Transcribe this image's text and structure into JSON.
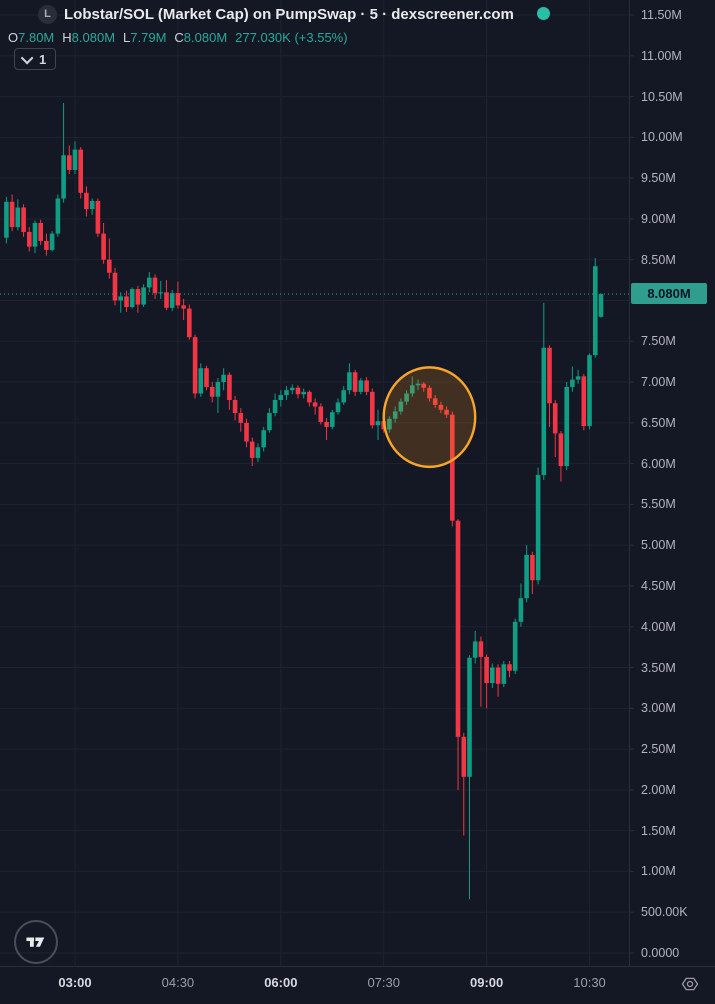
{
  "header": {
    "symbol_badge": "L",
    "title": "Lobstar/SOL (Market Cap) on PumpSwap · 5 · dexscreener.com",
    "ohlc": {
      "o_label": "O",
      "o_value": "7.80M",
      "h_label": "H",
      "h_value": "8.080M",
      "l_label": "L",
      "l_value": "7.79M",
      "c_label": "C",
      "c_value": "8.080M",
      "change": "277.030K (+3.55%)"
    },
    "interval_button_label": "1",
    "status_dot_color": "#27bfa5"
  },
  "chart_data": {
    "type": "candlestick",
    "interval": "5 minutes",
    "title": "Lobstar/SOL Market Cap on PumpSwap",
    "ylim": [
      0,
      11.5
    ],
    "grid": true,
    "last_price": "8.080M",
    "last_price_value": 8.08,
    "colors": {
      "up": "#0f9d84",
      "down": "#f23645",
      "accent": "#2fa99a",
      "grid": "#1e2330",
      "chip_bg": "#2f9e8e",
      "chip_text": "#0c1424"
    },
    "price_ticks": [
      {
        "value": 11.5,
        "label": "11.50M"
      },
      {
        "value": 11.0,
        "label": "11.00M"
      },
      {
        "value": 10.5,
        "label": "10.50M"
      },
      {
        "value": 10.0,
        "label": "10.00M"
      },
      {
        "value": 9.5,
        "label": "9.50M"
      },
      {
        "value": 9.0,
        "label": "9.00M"
      },
      {
        "value": 8.5,
        "label": "8.50M"
      },
      {
        "value": 7.5,
        "label": "7.50M"
      },
      {
        "value": 7.0,
        "label": "7.00M"
      },
      {
        "value": 6.5,
        "label": "6.50M"
      },
      {
        "value": 6.0,
        "label": "6.00M"
      },
      {
        "value": 5.5,
        "label": "5.50M"
      },
      {
        "value": 5.0,
        "label": "5.00M"
      },
      {
        "value": 4.5,
        "label": "4.50M"
      },
      {
        "value": 4.0,
        "label": "4.00M"
      },
      {
        "value": 3.5,
        "label": "3.50M"
      },
      {
        "value": 3.0,
        "label": "3.00M"
      },
      {
        "value": 2.5,
        "label": "2.50M"
      },
      {
        "value": 2.0,
        "label": "2.00M"
      },
      {
        "value": 1.5,
        "label": "1.50M"
      },
      {
        "value": 1.0,
        "label": "1.00M"
      },
      {
        "value": 0.5,
        "label": "500.00K"
      },
      {
        "value": 0.0,
        "label": "0.0000"
      }
    ],
    "time_axis": [
      {
        "label": "03:00",
        "bold": true
      },
      {
        "label": "04:30",
        "bold": false
      },
      {
        "label": "06:00",
        "bold": true
      },
      {
        "label": "07:30",
        "bold": false
      },
      {
        "label": "09:00",
        "bold": true
      },
      {
        "label": "10:30",
        "bold": false
      }
    ],
    "annotation_circle": {
      "center_time": "08:10",
      "center_price": 6.57,
      "radius_minutes": 40,
      "radius_price": 0.61,
      "stroke": "#f7a62b",
      "fill": "rgba(247,147,26,0.2)"
    },
    "columns": [
      "time",
      "open",
      "high",
      "low",
      "close"
    ],
    "candles": [
      [
        "02:00",
        8.77,
        9.27,
        8.7,
        9.21
      ],
      [
        "02:05",
        9.21,
        9.3,
        8.85,
        8.9
      ],
      [
        "02:10",
        8.9,
        9.24,
        8.86,
        9.14
      ],
      [
        "02:15",
        9.14,
        9.18,
        8.78,
        8.84
      ],
      [
        "02:20",
        8.84,
        8.9,
        8.6,
        8.66
      ],
      [
        "02:25",
        8.66,
        8.98,
        8.58,
        8.95
      ],
      [
        "02:30",
        8.95,
        8.99,
        8.68,
        8.73
      ],
      [
        "02:35",
        8.73,
        8.82,
        8.55,
        8.62
      ],
      [
        "02:40",
        8.62,
        8.85,
        8.6,
        8.82
      ],
      [
        "02:45",
        8.82,
        9.3,
        8.78,
        9.25
      ],
      [
        "02:50",
        9.25,
        10.42,
        9.2,
        9.78
      ],
      [
        "02:55",
        9.78,
        9.9,
        9.55,
        9.6
      ],
      [
        "03:00",
        9.6,
        9.95,
        9.55,
        9.85
      ],
      [
        "03:05",
        9.85,
        9.88,
        9.25,
        9.32
      ],
      [
        "03:10",
        9.32,
        9.4,
        9.03,
        9.12
      ],
      [
        "03:15",
        9.12,
        9.25,
        9.05,
        9.22
      ],
      [
        "03:20",
        9.22,
        9.25,
        8.78,
        8.82
      ],
      [
        "03:25",
        8.82,
        8.95,
        8.45,
        8.5
      ],
      [
        "03:30",
        8.5,
        8.76,
        8.27,
        8.34
      ],
      [
        "03:35",
        8.34,
        8.4,
        7.94,
        8.0
      ],
      [
        "03:40",
        8.0,
        8.1,
        7.85,
        8.05
      ],
      [
        "03:45",
        8.05,
        8.12,
        7.86,
        7.92
      ],
      [
        "03:50",
        7.92,
        8.16,
        7.9,
        8.14
      ],
      [
        "03:55",
        8.14,
        8.18,
        7.85,
        7.95
      ],
      [
        "04:00",
        7.95,
        8.2,
        7.92,
        8.16
      ],
      [
        "04:05",
        8.16,
        8.35,
        8.1,
        8.28
      ],
      [
        "04:10",
        8.28,
        8.32,
        8.02,
        8.09
      ],
      [
        "04:15",
        8.09,
        8.24,
        8.02,
        8.1
      ],
      [
        "04:20",
        8.1,
        8.25,
        7.88,
        7.91
      ],
      [
        "04:25",
        7.91,
        8.13,
        7.87,
        8.09
      ],
      [
        "04:30",
        8.09,
        8.23,
        7.9,
        7.94
      ],
      [
        "04:35",
        7.94,
        8.02,
        7.76,
        7.9
      ],
      [
        "04:40",
        7.9,
        7.95,
        7.52,
        7.55
      ],
      [
        "04:45",
        7.55,
        7.58,
        6.8,
        6.86
      ],
      [
        "04:50",
        6.86,
        7.23,
        6.82,
        7.17
      ],
      [
        "04:55",
        7.17,
        7.2,
        6.9,
        6.94
      ],
      [
        "05:00",
        6.94,
        7.0,
        6.75,
        6.82
      ],
      [
        "05:05",
        6.82,
        7.05,
        6.62,
        7.0
      ],
      [
        "05:10",
        7.0,
        7.17,
        6.9,
        7.09
      ],
      [
        "05:15",
        7.09,
        7.12,
        6.66,
        6.78
      ],
      [
        "05:20",
        6.78,
        6.83,
        6.53,
        6.62
      ],
      [
        "05:25",
        6.62,
        6.68,
        6.39,
        6.5
      ],
      [
        "05:30",
        6.5,
        6.55,
        6.2,
        6.27
      ],
      [
        "05:35",
        6.27,
        6.32,
        5.97,
        6.07
      ],
      [
        "05:40",
        6.07,
        6.25,
        6.02,
        6.2
      ],
      [
        "05:45",
        6.2,
        6.45,
        6.15,
        6.41
      ],
      [
        "05:50",
        6.41,
        6.68,
        6.38,
        6.62
      ],
      [
        "05:55",
        6.62,
        6.86,
        6.58,
        6.78
      ],
      [
        "06:00",
        6.78,
        6.9,
        6.7,
        6.84
      ],
      [
        "06:05",
        6.84,
        6.95,
        6.78,
        6.9
      ],
      [
        "06:10",
        6.9,
        6.97,
        6.85,
        6.93
      ],
      [
        "06:15",
        6.93,
        6.96,
        6.8,
        6.85
      ],
      [
        "06:20",
        6.85,
        6.92,
        6.8,
        6.88
      ],
      [
        "06:25",
        6.88,
        6.9,
        6.7,
        6.75
      ],
      [
        "06:30",
        6.75,
        6.8,
        6.6,
        6.7
      ],
      [
        "06:35",
        6.7,
        6.74,
        6.48,
        6.51
      ],
      [
        "06:40",
        6.51,
        6.56,
        6.29,
        6.45
      ],
      [
        "06:45",
        6.45,
        6.66,
        6.42,
        6.63
      ],
      [
        "06:50",
        6.63,
        6.8,
        6.6,
        6.75
      ],
      [
        "06:55",
        6.75,
        6.95,
        6.72,
        6.9
      ],
      [
        "07:00",
        6.9,
        7.23,
        6.85,
        7.12
      ],
      [
        "07:05",
        7.12,
        7.15,
        6.83,
        6.88
      ],
      [
        "07:10",
        6.88,
        7.05,
        6.85,
        7.02
      ],
      [
        "07:15",
        7.02,
        7.06,
        6.84,
        6.88
      ],
      [
        "07:20",
        6.88,
        6.92,
        6.43,
        6.47
      ],
      [
        "07:25",
        6.47,
        6.66,
        6.29,
        6.52
      ],
      [
        "07:30",
        6.52,
        6.56,
        6.38,
        6.42
      ],
      [
        "07:35",
        6.42,
        6.58,
        6.38,
        6.55
      ],
      [
        "07:40",
        6.55,
        6.7,
        6.5,
        6.64
      ],
      [
        "07:45",
        6.64,
        6.8,
        6.6,
        6.76
      ],
      [
        "07:50",
        6.76,
        6.9,
        6.72,
        6.86
      ],
      [
        "07:55",
        6.86,
        7.07,
        6.82,
        6.96
      ],
      [
        "08:00",
        6.96,
        7.03,
        6.9,
        6.98
      ],
      [
        "08:05",
        6.98,
        7.0,
        6.88,
        6.93
      ],
      [
        "08:10",
        6.93,
        6.96,
        6.76,
        6.8
      ],
      [
        "08:15",
        6.8,
        6.84,
        6.68,
        6.72
      ],
      [
        "08:20",
        6.72,
        6.76,
        6.62,
        6.66
      ],
      [
        "08:25",
        6.66,
        6.7,
        6.56,
        6.6
      ],
      [
        "08:30",
        6.6,
        6.64,
        5.23,
        5.3
      ],
      [
        "08:35",
        5.3,
        5.32,
        2.0,
        2.65
      ],
      [
        "08:40",
        2.65,
        2.7,
        1.44,
        2.16
      ],
      [
        "08:45",
        2.16,
        3.65,
        0.66,
        3.62
      ],
      [
        "08:50",
        3.62,
        3.95,
        3.55,
        3.82
      ],
      [
        "08:55",
        3.82,
        3.88,
        3.02,
        3.63
      ],
      [
        "09:00",
        3.63,
        3.66,
        3.0,
        3.31
      ],
      [
        "09:05",
        3.31,
        3.55,
        3.25,
        3.5
      ],
      [
        "09:10",
        3.5,
        3.54,
        3.14,
        3.3
      ],
      [
        "09:15",
        3.3,
        3.58,
        3.26,
        3.54
      ],
      [
        "09:20",
        3.54,
        3.58,
        3.38,
        3.46
      ],
      [
        "09:25",
        3.46,
        4.1,
        3.42,
        4.06
      ],
      [
        "09:30",
        4.06,
        4.53,
        4.0,
        4.35
      ],
      [
        "09:35",
        4.35,
        5.0,
        4.3,
        4.88
      ],
      [
        "09:40",
        4.88,
        4.92,
        4.4,
        4.57
      ],
      [
        "09:45",
        4.57,
        5.95,
        4.52,
        5.86
      ],
      [
        "09:50",
        5.86,
        7.97,
        5.8,
        7.42
      ],
      [
        "09:55",
        7.42,
        7.45,
        6.45,
        6.74
      ],
      [
        "10:00",
        6.74,
        6.78,
        6.08,
        6.37
      ],
      [
        "10:05",
        6.37,
        6.4,
        5.78,
        5.97
      ],
      [
        "10:10",
        5.97,
        7.0,
        5.92,
        6.94
      ],
      [
        "10:15",
        6.94,
        7.19,
        6.88,
        7.03
      ],
      [
        "10:20",
        7.03,
        7.15,
        6.98,
        7.07
      ],
      [
        "10:25",
        7.07,
        7.1,
        6.41,
        6.46
      ],
      [
        "10:30",
        6.46,
        7.35,
        6.42,
        7.33
      ],
      [
        "10:35",
        7.33,
        8.52,
        7.3,
        8.42
      ],
      [
        "10:40",
        7.8,
        8.08,
        7.79,
        8.08
      ]
    ]
  },
  "icons": {
    "axis_settings": "gear-icon",
    "logo": "tradingview-logo"
  }
}
